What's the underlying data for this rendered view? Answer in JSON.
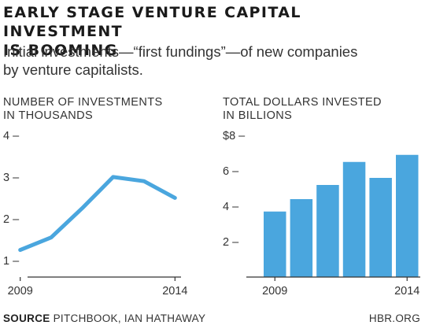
{
  "title_line1": "EARLY STAGE VENTURE CAPITAL INVESTMENT",
  "title_line2": "IS BOOMING",
  "subtitle_line1": "Initial investments—“first fundings”—of new companies",
  "subtitle_line2": "by venture capitalists.",
  "source_label": "SOURCE",
  "source_text": "PITCHBOOK, IAN HATHAWAY",
  "site": "HBR.ORG",
  "colors": {
    "series": "#4aa6de",
    "text": "#333333",
    "axis": "#333333"
  },
  "chart_data": [
    {
      "type": "line",
      "ylabel_line1": "NUMBER OF INVESTMENTS",
      "ylabel_line2": "IN THOUSANDS",
      "x": [
        2009,
        2010,
        2011,
        2012,
        2013,
        2014
      ],
      "values": [
        1.25,
        1.55,
        2.25,
        3.0,
        2.9,
        2.5
      ],
      "xlim": [
        2008.55,
        2014.5
      ],
      "ylim": [
        0.6,
        4
      ],
      "yticks": [
        1,
        2,
        3,
        4
      ],
      "ytick_labels": [
        "1 –",
        "2 –",
        "3 –",
        "4 –"
      ],
      "xticks": [
        2009,
        2014
      ],
      "xtick_labels": [
        "2009",
        "2014"
      ],
      "grid": false
    },
    {
      "type": "bar",
      "ylabel_line1": "TOTAL DOLLARS INVESTED",
      "ylabel_line2": "IN BILLIONS",
      "x": [
        2009,
        2010,
        2011,
        2012,
        2013,
        2014
      ],
      "values": [
        3.7,
        4.4,
        5.2,
        6.5,
        5.6,
        6.9
      ],
      "ylim": [
        0,
        8
      ],
      "yticks": [
        2,
        4,
        6,
        8
      ],
      "ytick_labels": [
        "2 –",
        "4 –",
        "6 –",
        "$8 –"
      ],
      "xticks": [
        2009,
        2014
      ],
      "xtick_labels": [
        "2009",
        "2014"
      ],
      "grid": false
    }
  ]
}
